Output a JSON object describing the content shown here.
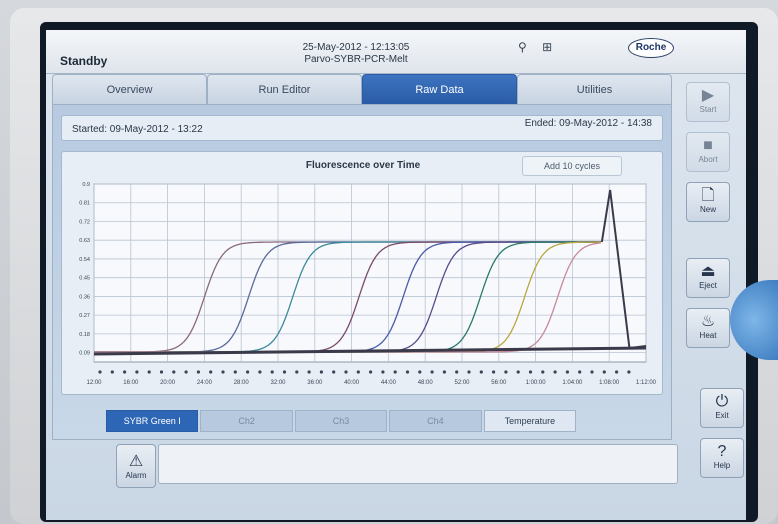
{
  "status": {
    "title": "Standby",
    "datetime": "25-May-2012 - 12:13:05",
    "run_name": "Parvo-SYBR-PCR-Melt",
    "brand": "Roche",
    "icons": [
      "network-icon",
      "lan-icon"
    ]
  },
  "tabs": [
    {
      "label": "Overview",
      "active": false
    },
    {
      "label": "Run Editor",
      "active": false
    },
    {
      "label": "Raw Data",
      "active": true
    },
    {
      "label": "Utilities",
      "active": false
    }
  ],
  "run_info": {
    "started": "Started: 09-May-2012 - 13:22",
    "ended": "Ended: 09-May-2012 - 14:38"
  },
  "chart": {
    "title": "Fluorescence over Time",
    "add_cycles_label": "Add 10 cycles"
  },
  "chart_data": {
    "type": "line",
    "title": "Fluorescence over Time",
    "xlabel": "",
    "ylabel": "",
    "y_ticks": [
      "0.9",
      "0.81",
      "0.72",
      "0.63",
      "0.54",
      "0.45",
      "0.36",
      "0.27",
      "0.18",
      "0.09"
    ],
    "x_ticks": [
      "12:00",
      "16:00",
      "20:00",
      "24:00",
      "28:00",
      "32:00",
      "36:00",
      "40:00",
      "44:00",
      "48:00",
      "52:00",
      "56:00",
      "1:00:00",
      "1:04:00",
      "1:08:00",
      "1:12:00"
    ],
    "ylim": [
      0,
      0.9
    ],
    "grid": true,
    "series": [
      {
        "color": "#8a6a7a",
        "midpoint": 0.2,
        "values": []
      },
      {
        "color": "#5a6a9a",
        "midpoint": 0.28,
        "values": []
      },
      {
        "color": "#3a8a9a",
        "midpoint": 0.36,
        "values": []
      },
      {
        "color": "#7a4a6a",
        "midpoint": 0.48,
        "values": []
      },
      {
        "color": "#4a5aaa",
        "midpoint": 0.56,
        "values": []
      },
      {
        "color": "#5a4a8a",
        "midpoint": 0.62,
        "values": []
      },
      {
        "color": "#2a7a6a",
        "midpoint": 0.7,
        "values": []
      },
      {
        "color": "#b8a840",
        "midpoint": 0.78,
        "values": []
      },
      {
        "color": "#c88a9a",
        "midpoint": 0.84,
        "values": []
      }
    ]
  },
  "channels": [
    {
      "label": "SYBR Green I",
      "active": true
    },
    {
      "label": "Ch2",
      "active": false
    },
    {
      "label": "Ch3",
      "active": false
    },
    {
      "label": "Ch4",
      "active": false
    },
    {
      "label": "Temperature",
      "active": false
    }
  ],
  "side_buttons": [
    {
      "label": "Start",
      "icon": "play-icon",
      "glyph": "▶",
      "enabled": false
    },
    {
      "label": "Abort",
      "icon": "stop-icon",
      "glyph": "■",
      "enabled": false
    },
    {
      "label": "New",
      "icon": "document-icon",
      "glyph": "🗋",
      "enabled": true
    },
    {
      "label": "Eject",
      "icon": "eject-icon",
      "glyph": "⏏",
      "enabled": true
    },
    {
      "label": "Heat",
      "icon": "heat-icon",
      "glyph": "♨",
      "enabled": true
    },
    {
      "label": "Exit",
      "icon": "exit-icon",
      "glyph": "⏻",
      "enabled": true
    },
    {
      "label": "Help",
      "icon": "help-icon",
      "glyph": "?",
      "enabled": true
    }
  ],
  "alarm": {
    "label": "Alarm",
    "icon": "warning-icon",
    "glyph": "⚠"
  }
}
